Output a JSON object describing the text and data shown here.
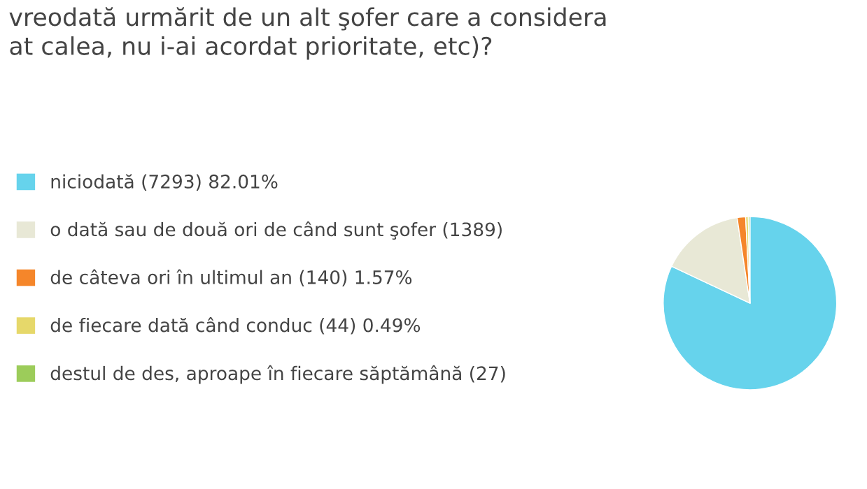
{
  "chart_data": {
    "type": "pie",
    "title": "vreodată urmărit de un alt şofer care a considera\nat calea, nu i-ai acordat prioritate, etc)?",
    "categories": [
      "niciodată (7293) 82.01%",
      "o dată sau de două ori de când sunt şofer (1389)",
      "de câteva ori în ultimul an (140) 1.57%",
      "de fiecare dată când conduc (44) 0.49%",
      "destul de des, aproape în fiecare săptămână (27)"
    ],
    "values": [
      7293,
      1389,
      140,
      44,
      27
    ],
    "legend": "left",
    "colors": [
      "#66d3ec",
      "#e8e8d6",
      "#f5862a",
      "#e6d86a",
      "#9ccc5a"
    ]
  }
}
